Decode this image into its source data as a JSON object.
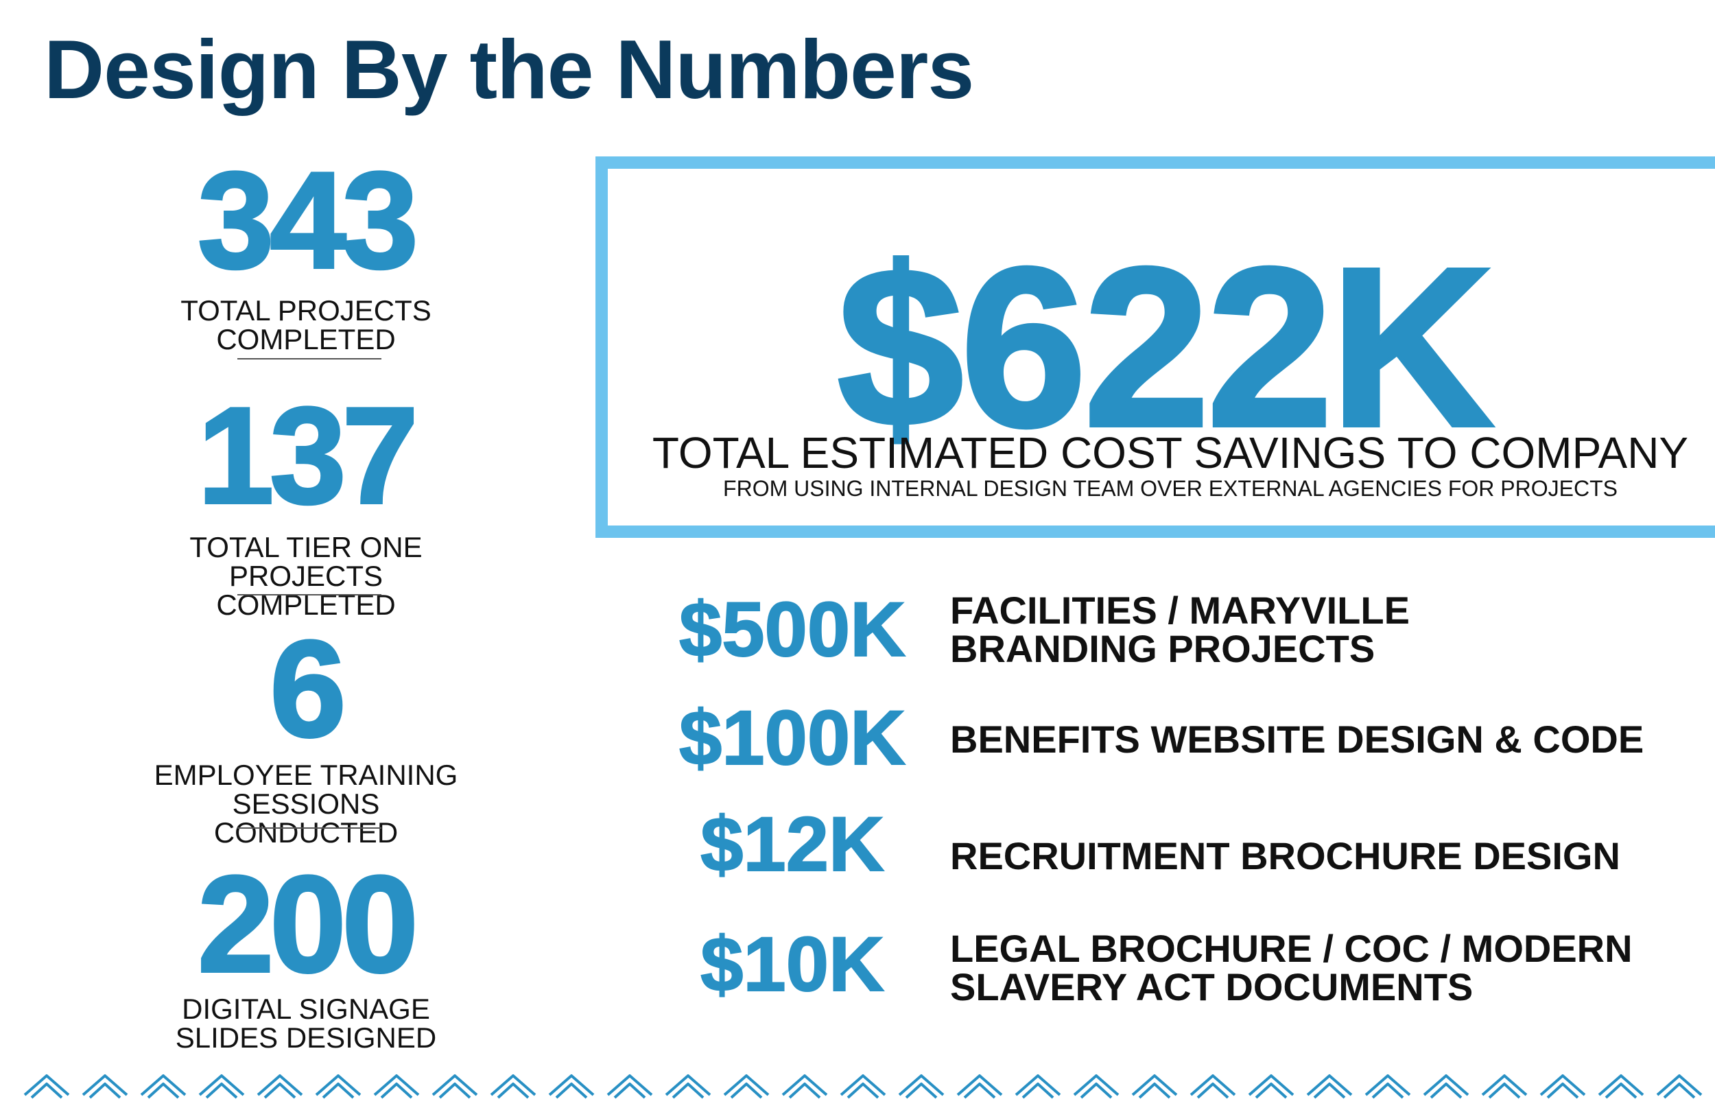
{
  "title": "Design By the Numbers",
  "colors": {
    "title": "#0b3a5c",
    "accent": "#2890c4",
    "box_border": "#6cc3ee",
    "text": "#111111"
  },
  "stats": [
    {
      "value": "343",
      "label": "TOTAL PROJECTS\nCOMPLETED"
    },
    {
      "value": "137",
      "label": "TOTAL TIER ONE\nPROJECTS COMPLETED"
    },
    {
      "value": "6",
      "label": "EMPLOYEE TRAINING\nSESSIONS CONDUCTED"
    },
    {
      "value": "200",
      "label": "DIGITAL SIGNAGE\nSLIDES DESIGNED"
    }
  ],
  "highlight": {
    "value": "$622K",
    "label": "TOTAL ESTIMATED COST SAVINGS TO COMPANY",
    "sublabel": "FROM USING INTERNAL DESIGN TEAM OVER EXTERNAL AGENCIES FOR PROJECTS"
  },
  "savings": [
    {
      "amount": "$500K",
      "description": "FACILITIES / MARYVILLE\nBRANDING PROJECTS"
    },
    {
      "amount": "$100K",
      "description": "BENEFITS WEBSITE DESIGN & CODE"
    },
    {
      "amount": "$12K",
      "description": "RECRUITMENT BROCHURE DESIGN"
    },
    {
      "amount": "$10K",
      "description": "LEGAL BROCHURE / COC / MODERN\nSLAVERY ACT DOCUMENTS"
    }
  ],
  "decoration": {
    "chevron_icon": "chevron-up-icon",
    "chevron_count": 29
  }
}
